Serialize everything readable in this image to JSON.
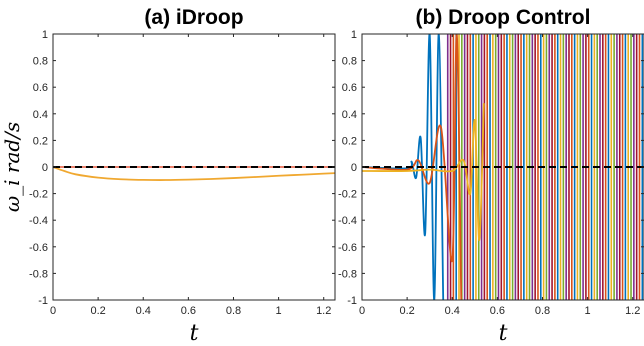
{
  "chart_data": [
    {
      "type": "line",
      "title": "(a) iDroop",
      "xlabel": "t",
      "ylabel": "ω_i rad/s",
      "xlim": [
        0,
        1.25
      ],
      "ylim": [
        -1,
        1
      ],
      "xticks": [
        0,
        0.2,
        0.4,
        0.6,
        0.8,
        1,
        1.2
      ],
      "yticks": [
        1,
        0.8,
        0.6,
        0.4,
        0.2,
        0,
        -0.2,
        -0.4,
        -0.6,
        -0.8,
        -1
      ],
      "grid": false,
      "series": [
        {
          "color": "#f0a830",
          "x": [
            0,
            0.05,
            0.1,
            0.2,
            0.3,
            0.4,
            0.5,
            0.6,
            0.7,
            0.8,
            0.9,
            1.0,
            1.1,
            1.2,
            1.25
          ],
          "y": [
            0,
            -0.03,
            -0.055,
            -0.08,
            -0.092,
            -0.097,
            -0.098,
            -0.095,
            -0.09,
            -0.083,
            -0.075,
            -0.066,
            -0.058,
            -0.05,
            -0.046
          ]
        },
        {
          "color": "#e8705a",
          "x": [
            0,
            1.25
          ],
          "y": [
            0,
            0
          ]
        },
        {
          "color": "#000000",
          "dash": true,
          "x": [
            0,
            1.25
          ],
          "y": [
            0,
            0
          ]
        }
      ]
    },
    {
      "type": "line",
      "title": "(b) Droop Control",
      "xlabel": "t",
      "ylabel": "",
      "xlim": [
        0,
        1.25
      ],
      "ylim": [
        -1,
        1
      ],
      "xticks": [
        0,
        0.2,
        0.4,
        0.6,
        0.8,
        1,
        1.2
      ],
      "yticks": [
        1,
        0.8,
        0.6,
        0.4,
        0.2,
        0,
        -0.2,
        -0.4,
        -0.6,
        -0.8,
        -1
      ],
      "grid": false,
      "oscillation_band": {
        "x_start": 0.38,
        "x_end": 1.25,
        "spacing": 0.0125,
        "colors": [
          "#7e2f8e",
          "#a2142f",
          "#d95319",
          "#0072bd",
          "#edb120",
          "#77ac30"
        ]
      },
      "series": [
        {
          "color": "#0072bd",
          "x": [
            0,
            0.2,
            0.22,
            0.24,
            0.26,
            0.28,
            0.3,
            0.32,
            0.34,
            0.36
          ],
          "y": [
            0,
            -0.01,
            0.04,
            -0.08,
            0.22,
            -0.5,
            1.0,
            -1.0,
            1.0,
            -1.0
          ]
        },
        {
          "color": "#d95319",
          "x": [
            0,
            0.2,
            0.25,
            0.3,
            0.35,
            0.4,
            0.42,
            0.44
          ],
          "y": [
            0,
            -0.02,
            0.05,
            -0.12,
            0.3,
            -0.7,
            1.0,
            -1.0
          ]
        },
        {
          "color": "#edb120",
          "x": [
            0,
            0.2,
            0.3,
            0.4,
            0.45,
            0.48,
            0.5,
            0.52,
            0.54
          ],
          "y": [
            -0.03,
            -0.03,
            -0.02,
            -0.03,
            0.05,
            -0.2,
            0.35,
            -0.55,
            0.48
          ]
        },
        {
          "color": "#000000",
          "dash": true,
          "x": [
            0,
            1.25
          ],
          "y": [
            0,
            0
          ]
        }
      ]
    }
  ]
}
